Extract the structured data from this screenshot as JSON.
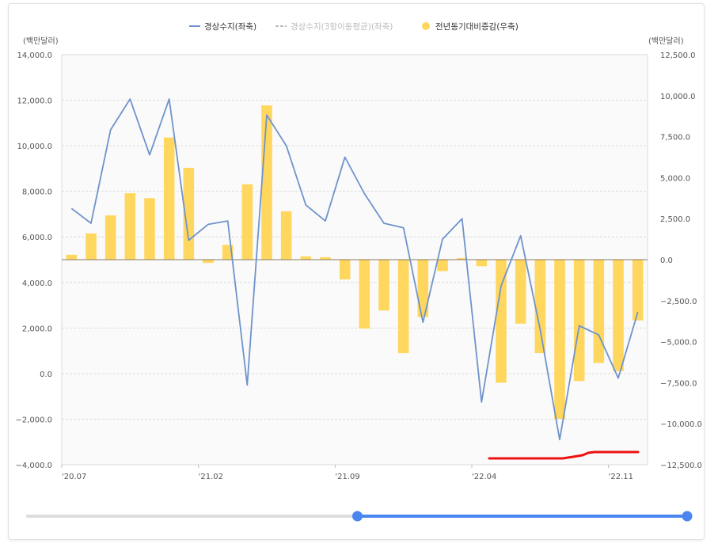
{
  "chart_data": {
    "type": "bar+line",
    "left_axis_unit": "(백만달러)",
    "right_axis_unit": "(백만달러)",
    "left_ylim": [
      -4000,
      14000
    ],
    "left_ticks": [
      "14,000.0",
      "12,000.0",
      "10,000.0",
      "8,000.0",
      "6,000.0",
      "4,000.0",
      "2,000.0",
      "0.0",
      "−2,000.0",
      "−4,000.0"
    ],
    "right_ylim": [
      -12500,
      12500
    ],
    "right_ticks": [
      "12,500.0",
      "10,000.0",
      "7,500.0",
      "5,000.0",
      "2,500.0",
      "0.0",
      "−2,500.0",
      "−5,000.0",
      "−7,500.0",
      "−10,000.0",
      "−12,500.0"
    ],
    "x_tick_labels": [
      "'20.07",
      "'21.02",
      "'21.09",
      "'22.04",
      "'22.11"
    ],
    "categories": [
      "2020.07",
      "2020.08",
      "2020.09",
      "2020.10",
      "2020.11",
      "2020.12",
      "2021.01",
      "2021.02",
      "2021.03",
      "2021.04",
      "2021.05",
      "2021.06",
      "2021.07",
      "2021.08",
      "2021.09",
      "2021.10",
      "2021.11",
      "2021.12",
      "2022.01",
      "2022.02",
      "2022.03",
      "2022.04",
      "2022.05",
      "2022.06",
      "2022.07",
      "2022.08",
      "2022.09",
      "2022.10",
      "2022.11",
      "2022.12"
    ],
    "legend": [
      {
        "label": "경상수지(좌축)",
        "color": "#6f93cc",
        "kind": "line"
      },
      {
        "label": "경상수지(3항이동평균)(좌축)",
        "color": "#bbbbbb",
        "kind": "dash"
      },
      {
        "label": "전년동기대비증감(우축)",
        "color": "#ffd75e",
        "kind": "dot"
      }
    ],
    "series": [
      {
        "name": "경상수지(좌축)",
        "axis": "left",
        "type": "line",
        "color": "#6f93cc",
        "values": [
          7250,
          6600,
          10700,
          12050,
          9600,
          12050,
          5850,
          6550,
          6700,
          -500,
          11350,
          10000,
          7400,
          6700,
          9500,
          7900,
          6600,
          6400,
          2250,
          5900,
          6800,
          -1250,
          3850,
          6050,
          1950,
          -2900,
          2100,
          1700,
          -200,
          2700
        ]
      },
      {
        "name": "전년동기대비증감(우축)",
        "axis": "right",
        "type": "bar",
        "color": "#ffd75e",
        "values": [
          300,
          1600,
          2700,
          4050,
          3750,
          7450,
          5600,
          -200,
          900,
          4600,
          9400,
          2950,
          200,
          150,
          -1200,
          -4200,
          -3100,
          -5700,
          -3500,
          -700,
          100,
          -400,
          -7500,
          -3900,
          -5700,
          -9700,
          -7400,
          -6300,
          -6800,
          -3700
        ]
      }
    ]
  },
  "slider": {
    "start_fraction": 0.5,
    "end_fraction": 1.0,
    "track_color": "#dddddd",
    "range_color": "#4a85f0"
  }
}
